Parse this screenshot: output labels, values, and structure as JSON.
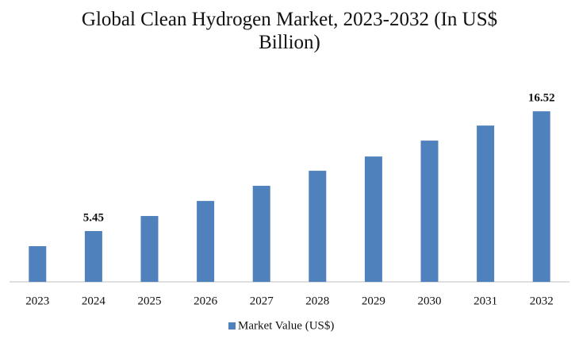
{
  "chart_data": {
    "type": "bar",
    "title": "Global Clean Hydrogen Market, 2023-2032 (In US$ Billion)",
    "categories": [
      "2023",
      "2024",
      "2025",
      "2026",
      "2027",
      "2028",
      "2029",
      "2030",
      "2031",
      "2032"
    ],
    "series": [
      {
        "name": "Market Value (US$)",
        "color": "#4f81bd",
        "values": [
          4.05,
          5.45,
          6.84,
          8.23,
          9.63,
          11.02,
          12.34,
          13.81,
          15.2,
          16.52
        ],
        "value_labels": [
          null,
          "5.45",
          null,
          null,
          null,
          null,
          null,
          null,
          null,
          "16.52"
        ]
      }
    ],
    "ylim": [
      0.75,
      18
    ],
    "legend": "bottom"
  }
}
